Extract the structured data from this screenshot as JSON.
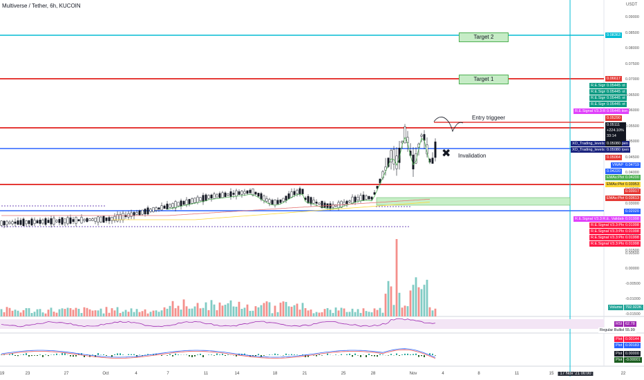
{
  "header": {
    "title": "Multiverse / Tether, 6h, KUCOIN"
  },
  "currency": "USDT",
  "colors": {
    "up": "#26a69a",
    "down": "#ef5350",
    "vol_up": "#80cbc4",
    "vol_down": "#f48f8b",
    "red_line": "#e53935",
    "blue_line": "#2962ff",
    "teal_line": "#00bcd4",
    "green_box": "#c8efc8",
    "vwap": "#2962ff",
    "ema": "#4caf50",
    "rsi": "#9c27b0",
    "macd": "#2962ff",
    "signal": "#ef5350"
  },
  "price_axis": [
    "0.09000",
    "0.08500",
    "0.08000",
    "0.07500",
    "0.07000",
    "0.06500",
    "0.06000",
    "0.05500",
    "0.05000",
    "0.04500",
    "0.04000",
    "0.03500",
    "0.03000",
    "0.02500",
    "0.02000",
    "0.01500"
  ],
  "osc_axis": [
    "0.00500",
    "0.00000",
    "-0.00500",
    "-0.01000",
    "-0.01500"
  ],
  "x_axis": [
    "19",
    "23",
    "27",
    "Oct",
    "4",
    "7",
    "11",
    "14",
    "18",
    "21",
    "25",
    "28",
    "Nov",
    "4",
    "8",
    "11",
    "15",
    "17 Nov '21  00:00",
    "22"
  ],
  "annotations": {
    "target2": "Target 2",
    "target1": "Target 1",
    "entry": "Entry triggeer",
    "invalidation": "Invalidation",
    "x_mark": "✖"
  },
  "labels": {
    "l_0836": "0.08363",
    "l_0661": "0.06617",
    "sig1": "R.E.Signal V3.3:Plot",
    "sig1v": "0.05445",
    "sig2": "R.E.Signal V3.3:Plot",
    "sig2v": "0.05445",
    "sig3": "R.E.Signal V3.3:Plot",
    "sig3v": "0.05445",
    "sig4": "R.E.Signal V3.3:Plot",
    "sig4v": "0.05445",
    "val1": "R.E.Signal V3.3:R.E. Validation",
    "val1v": "0.05445",
    "l_0527": "0.05290",
    "last_price": "0.05111",
    "last_pct": "+224.10%",
    "last_time": "33:14",
    "weekly": "XO_Trading_levels:Weekly Open",
    "weeklyv": "0.05080",
    "monthly": "XO_Trading_levels:Monthly Open",
    "monthlyv": "0.05080",
    "l_0506": "0.05064",
    "vwap": "VWAP",
    "vwapv": "0.04719",
    "l_0423": "0.04220",
    "ema1": "EMAs:Plot",
    "ema1v": "0.04200",
    "ema2": "EMAs:Plot",
    "ema2v": "0.03953",
    "l_0391": "0.03917",
    "ema3": "EMAs:Plot",
    "ema3v": "0.03613",
    "l_0202": "0.02020",
    "val2": "R.E.Signal V3.3:R.E. Validation",
    "val2v": "0.01998",
    "sig5": "R.E.Signal V3.3:Plot",
    "sig5v": "0.01998",
    "sig6": "R.E.Signal V3.3:Plot",
    "sig6v": "0.01998",
    "sig7": "R.E.Signal V3.3:Plot",
    "sig7v": "0.01998",
    "sig8": "R.E.Signal V3.3:Plot",
    "sig8v": "0.01998",
    "volume": "Volume",
    "volumev": "792.922K",
    "rsi": "RSI",
    "rsiv": "62.78",
    "bull": "Regular Bullish",
    "bullv": "55.99",
    "plot1": "Plot",
    "plot1v": "0.00144",
    "plot2": "Plot",
    "plot2v": "0.00183",
    "plot3": "Plot",
    "plot3v": "0.00000",
    "plot4": "Plot",
    "plot4v": "-0.00001"
  }
}
